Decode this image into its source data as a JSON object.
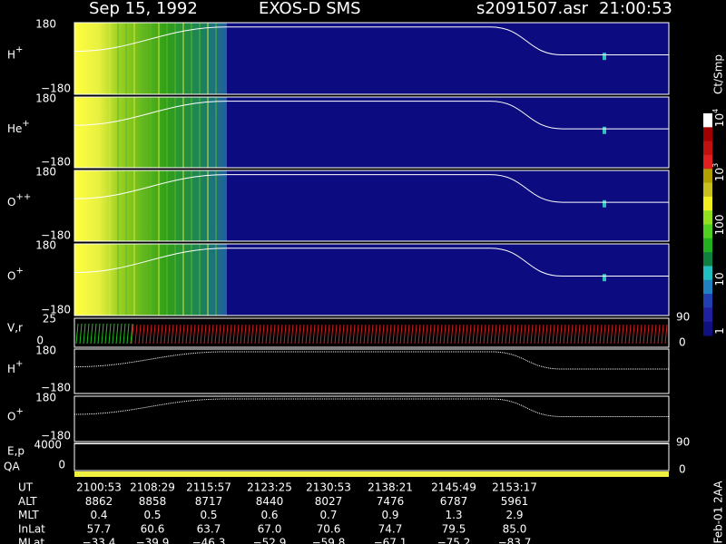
{
  "header": {
    "date": "Sep 15, 1992",
    "instrument": "EXOS-D SMS",
    "file": "s2091507.asr",
    "time": "21:00:53"
  },
  "panels": [
    {
      "ion": "H",
      "charge": "+",
      "top": "180",
      "bottom": "−180"
    },
    {
      "ion": "He",
      "charge": "+",
      "top": "180",
      "bottom": "−180"
    },
    {
      "ion": "O",
      "charge": "++",
      "top": "180",
      "bottom": "−180"
    },
    {
      "ion": "O",
      "charge": "+",
      "top": "180",
      "bottom": "−180"
    }
  ],
  "velocity": {
    "label": "V,r",
    "top": "25",
    "bottom": "0",
    "right_top": "90",
    "right_bottom": "0"
  },
  "lower_panels": [
    {
      "ion": "H",
      "charge": "+",
      "top": "180",
      "bottom": "−180"
    },
    {
      "ion": "O",
      "charge": "+",
      "top": "180",
      "bottom": "−180"
    }
  ],
  "energy": {
    "label": "E,p",
    "top": "4000",
    "bottom": "0",
    "right_top": "90",
    "right_bottom": "0"
  },
  "qa": "QA",
  "colorbar": {
    "unit": "Ct/Smp",
    "ticks": [
      {
        "base": "10",
        "exp": "4"
      },
      {
        "base": "10",
        "exp": "3"
      },
      {
        "base": "100"
      },
      {
        "base": "10"
      },
      {
        "base": "1"
      }
    ]
  },
  "table": {
    "rows": [
      {
        "label": "UT",
        "values": [
          "2100:53",
          "2108:29",
          "2115:57",
          "2123:25",
          "2130:53",
          "2138:21",
          "2145:49",
          "2153:17"
        ]
      },
      {
        "label": "ALT",
        "values": [
          "8862",
          "8858",
          "8717",
          "8440",
          "8027",
          "7476",
          "6787",
          "5961"
        ]
      },
      {
        "label": "MLT",
        "values": [
          "0.4",
          "0.5",
          "0.5",
          "0.6",
          "0.7",
          "0.9",
          "1.3",
          "2.9"
        ]
      },
      {
        "label": "InLat",
        "values": [
          "57.7",
          "60.6",
          "63.7",
          "67.0",
          "70.6",
          "74.7",
          "79.5",
          "85.0"
        ]
      },
      {
        "label": "MLat",
        "values": [
          "−33.4",
          "−39.9",
          "−46.3",
          "−52.9",
          "−59.8",
          "−67.1",
          "−75.2",
          "−83.7"
        ]
      }
    ]
  },
  "footer": "Feb-01 2AA"
}
